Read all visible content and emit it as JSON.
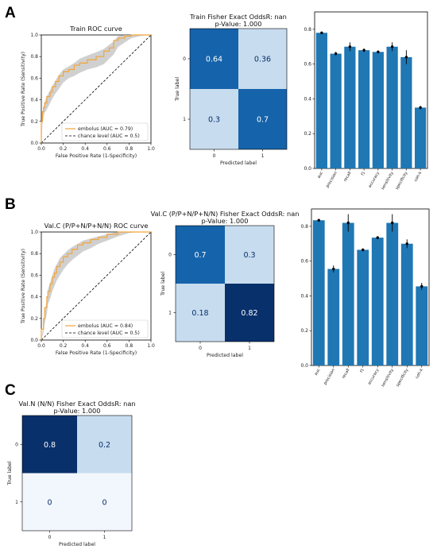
{
  "panel_labels": [
    "A",
    "B",
    "C"
  ],
  "colors": {
    "bar": "#1f77b4",
    "roc_line": "#f2a53a",
    "roc_band": "#c8c8c8",
    "chance": "#000000",
    "cm_dark": "#08306b",
    "cm_mid": "#1563aa",
    "cm_light": "#c7dcef",
    "cm_pale": "#f2f7fd"
  },
  "chart_data": [
    {
      "id": "roc_train",
      "type": "line",
      "title": "Train ROC curve",
      "xlabel": "False Positive Rate (1-Specificity)",
      "ylabel": "True Positive Rate (Sensitivity)",
      "xlim": [
        0,
        1
      ],
      "ylim": [
        0,
        1
      ],
      "xticks": [
        "0.0",
        "0.2",
        "0.4",
        "0.6",
        "0.8",
        "1.0"
      ],
      "yticks": [
        "0.0",
        "0.2",
        "0.4",
        "0.6",
        "0.8",
        "1.0"
      ],
      "legend_position": "lower-right",
      "series": [
        {
          "name": "embolus (AUC = 0.79)",
          "style": "solid",
          "x": [
            0,
            0.01,
            0.02,
            0.03,
            0.05,
            0.08,
            0.1,
            0.13,
            0.16,
            0.2,
            0.25,
            0.3,
            0.35,
            0.42,
            0.5,
            0.57,
            0.62,
            0.66,
            0.7,
            0.76,
            0.82,
            0.9,
            0.96,
            1.0
          ],
          "y": [
            0,
            0.2,
            0.29,
            0.33,
            0.37,
            0.43,
            0.47,
            0.52,
            0.57,
            0.62,
            0.66,
            0.68,
            0.72,
            0.74,
            0.77,
            0.8,
            0.85,
            0.88,
            0.95,
            0.97,
            0.99,
            1.0,
            1.0,
            1.0
          ],
          "band_low": [
            0,
            0.16,
            0.24,
            0.28,
            0.31,
            0.37,
            0.41,
            0.46,
            0.5,
            0.56,
            0.6,
            0.62,
            0.65,
            0.68,
            0.7,
            0.73,
            0.78,
            0.82,
            0.89,
            0.93,
            0.97,
            0.99,
            1.0,
            1.0
          ],
          "band_high": [
            0,
            0.24,
            0.33,
            0.38,
            0.43,
            0.49,
            0.53,
            0.58,
            0.63,
            0.68,
            0.71,
            0.74,
            0.78,
            0.81,
            0.84,
            0.87,
            0.91,
            0.94,
            0.99,
            1.0,
            1.0,
            1.0,
            1.0,
            1.0
          ]
        },
        {
          "name": "chance level (AUC = 0.5)",
          "style": "dashed",
          "x": [
            0,
            1
          ],
          "y": [
            0,
            1
          ]
        }
      ]
    },
    {
      "id": "cm_train",
      "type": "heatmap",
      "title": "Train Fisher Exact OddsR: nan",
      "subtitle": "p-Value: 1.000",
      "xlabel": "Predicted label",
      "ylabel": "True label",
      "row_labels": [
        "0",
        "1"
      ],
      "col_labels": [
        "0",
        "1"
      ],
      "values": [
        [
          0.64,
          0.36
        ],
        [
          0.3,
          0.7
        ]
      ]
    },
    {
      "id": "bars_train",
      "type": "bar",
      "categories": [
        "auc",
        "precision",
        "recall",
        "f1",
        "accuracy",
        "sensitivity",
        "specificity",
        "coh-k"
      ],
      "values": [
        0.78,
        0.66,
        0.7,
        0.68,
        0.67,
        0.7,
        0.64,
        0.35
      ],
      "err": [
        0.005,
        0.01,
        0.025,
        0.01,
        0.008,
        0.025,
        0.04,
        0.01
      ],
      "ylim": [
        0,
        0.9
      ],
      "yticks": [
        "0.0",
        "0.2",
        "0.4",
        "0.6",
        "0.8"
      ]
    },
    {
      "id": "roc_val_c",
      "type": "line",
      "title": "Val.C (P/P+N/P+N/N) ROC curve",
      "xlabel": "False Positive Rate (1-Specificity)",
      "ylabel": "True Positive Rate (Sensitivity)",
      "xlim": [
        0,
        1
      ],
      "ylim": [
        0,
        1
      ],
      "xticks": [
        "0.0",
        "0.2",
        "0.4",
        "0.6",
        "0.8",
        "1.0"
      ],
      "yticks": [
        "0.0",
        "0.2",
        "0.4",
        "0.6",
        "0.8",
        "1.0"
      ],
      "legend_position": "lower-right",
      "series": [
        {
          "name": "embolus (AUC = 0.84)",
          "style": "solid",
          "x": [
            0,
            0.02,
            0.03,
            0.05,
            0.06,
            0.08,
            0.1,
            0.12,
            0.14,
            0.17,
            0.2,
            0.24,
            0.28,
            0.33,
            0.38,
            0.45,
            0.52,
            0.6,
            0.7,
            0.8,
            0.88,
            1.0
          ],
          "y": [
            0,
            0.1,
            0.2,
            0.3,
            0.4,
            0.45,
            0.52,
            0.58,
            0.62,
            0.68,
            0.72,
            0.77,
            0.8,
            0.84,
            0.88,
            0.9,
            0.93,
            0.95,
            0.98,
            1.0,
            1.0,
            1.0
          ],
          "band_low": [
            0,
            0.07,
            0.15,
            0.24,
            0.33,
            0.38,
            0.45,
            0.5,
            0.55,
            0.6,
            0.65,
            0.7,
            0.74,
            0.78,
            0.82,
            0.85,
            0.89,
            0.92,
            0.96,
            0.99,
            1.0,
            1.0
          ],
          "band_high": [
            0,
            0.14,
            0.26,
            0.37,
            0.47,
            0.53,
            0.6,
            0.66,
            0.7,
            0.76,
            0.79,
            0.83,
            0.86,
            0.89,
            0.92,
            0.94,
            0.96,
            0.98,
            1.0,
            1.0,
            1.0,
            1.0
          ]
        },
        {
          "name": "chance level (AUC = 0.5)",
          "style": "dashed",
          "x": [
            0,
            1
          ],
          "y": [
            0,
            1
          ]
        }
      ]
    },
    {
      "id": "cm_val_c",
      "type": "heatmap",
      "title": "Val.C (P/P+N/P+N/N) Fisher Exact OddsR: nan",
      "subtitle": "p-Value: 1.000",
      "xlabel": "Predicted label",
      "ylabel": "True label",
      "row_labels": [
        "0",
        "1"
      ],
      "col_labels": [
        "0",
        "1"
      ],
      "values": [
        [
          0.7,
          0.3
        ],
        [
          0.18,
          0.82
        ]
      ]
    },
    {
      "id": "bars_val_c",
      "type": "bar",
      "categories": [
        "auc",
        "precision",
        "recall",
        "f1",
        "accuracy",
        "sensitivity",
        "specificity",
        "coh-k"
      ],
      "values": [
        0.835,
        0.555,
        0.82,
        0.665,
        0.735,
        0.82,
        0.7,
        0.455
      ],
      "err": [
        0.004,
        0.02,
        0.05,
        0.008,
        0.008,
        0.05,
        0.025,
        0.02
      ],
      "ylim": [
        0,
        0.9
      ],
      "yticks": [
        "0.0",
        "0.2",
        "0.4",
        "0.6",
        "0.8"
      ]
    },
    {
      "id": "cm_val_n",
      "type": "heatmap",
      "title": "Val.N (N/N) Fisher Exact OddsR: nan",
      "subtitle": "p-Value: 1.000",
      "xlabel": "Predicted label",
      "ylabel": "True label",
      "row_labels": [
        "0",
        "1"
      ],
      "col_labels": [
        "0",
        "1"
      ],
      "values": [
        [
          0.8,
          0.2
        ],
        [
          0,
          0
        ]
      ]
    }
  ]
}
